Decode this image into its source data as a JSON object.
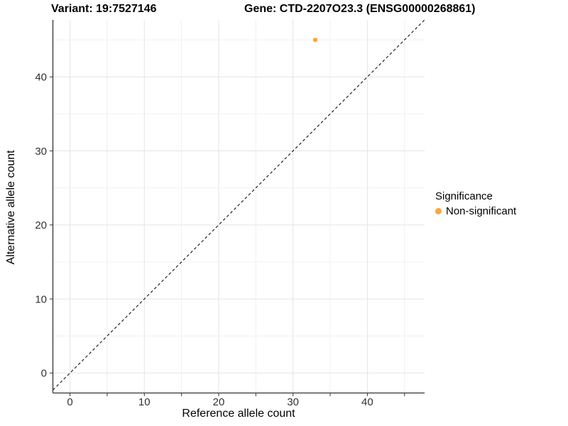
{
  "header": {
    "variant_title": "Variant: 19:7527146",
    "gene_title": "Gene: CTD-2207O23.3 (ENSG00000268861)"
  },
  "legend": {
    "title": "Significance",
    "items": [
      {
        "label": "Non-significant",
        "color": "#FCA53C"
      }
    ]
  },
  "colors": {
    "background": "#FFFFFF",
    "grid_major": "#E4E4E4",
    "grid_minor": "#F0F0F0",
    "axis_line": "#333333",
    "tick_label": "#333333",
    "reference_line": "#111111",
    "point": "#FCA53C"
  },
  "chart_data": {
    "type": "scatter",
    "title": "Variant: 19:7527146  Gene: CTD-2207O23.3 (ENSG00000268861)",
    "xlabel": "Reference allele count",
    "ylabel": "Alternative allele count",
    "xlim": [
      -2.3,
      47.7
    ],
    "ylim": [
      -2.7,
      47.7
    ],
    "x_major_ticks": [
      0,
      10,
      20,
      30,
      40
    ],
    "x_minor_ticks": [
      5,
      15,
      25,
      35,
      45
    ],
    "y_major_ticks": [
      0,
      10,
      20,
      30,
      40
    ],
    "y_minor_ticks": [
      5,
      15,
      25,
      35,
      45
    ],
    "grid": true,
    "legend_position": "right",
    "reference_line": {
      "slope": 1,
      "intercept": 0,
      "style": "dashed"
    },
    "series": [
      {
        "name": "Non-significant",
        "color": "#FCA53C",
        "points": [
          {
            "x": 33,
            "y": 45
          }
        ]
      }
    ]
  }
}
